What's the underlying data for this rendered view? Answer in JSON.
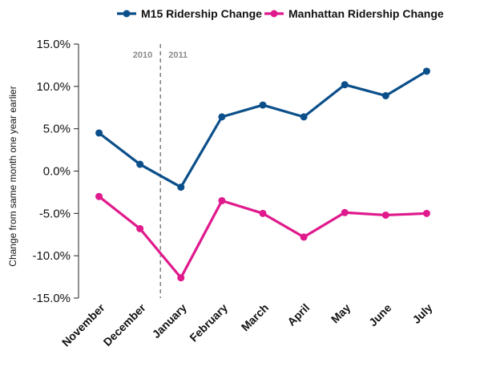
{
  "chart_data": {
    "type": "line",
    "categories": [
      "November",
      "December",
      "January",
      "February",
      "March",
      "April",
      "May",
      "June",
      "July"
    ],
    "series": [
      {
        "name": "M15 Ridership Change",
        "color": "#0b4f8a",
        "values": [
          4.5,
          0.8,
          -1.9,
          6.4,
          7.8,
          6.4,
          10.2,
          8.9,
          11.8
        ]
      },
      {
        "name": "Manhattan Ridership Change",
        "color": "#e0198c",
        "values": [
          -3.0,
          -6.8,
          -12.6,
          -3.5,
          -5.0,
          -7.8,
          -4.9,
          -5.2,
          -5.0
        ]
      }
    ],
    "y_ticks": [
      "15.0%",
      "10.0%",
      "5.0%",
      "0.0%",
      "-5.0%",
      "-10.0%",
      "-15.0%"
    ],
    "ylim": [
      -15,
      15
    ],
    "ylabel": "Change from same month one year earlier",
    "annotations": [
      "2010",
      "2011"
    ],
    "divider_after_category": "December",
    "legend_position": "top-right",
    "grid": false
  }
}
